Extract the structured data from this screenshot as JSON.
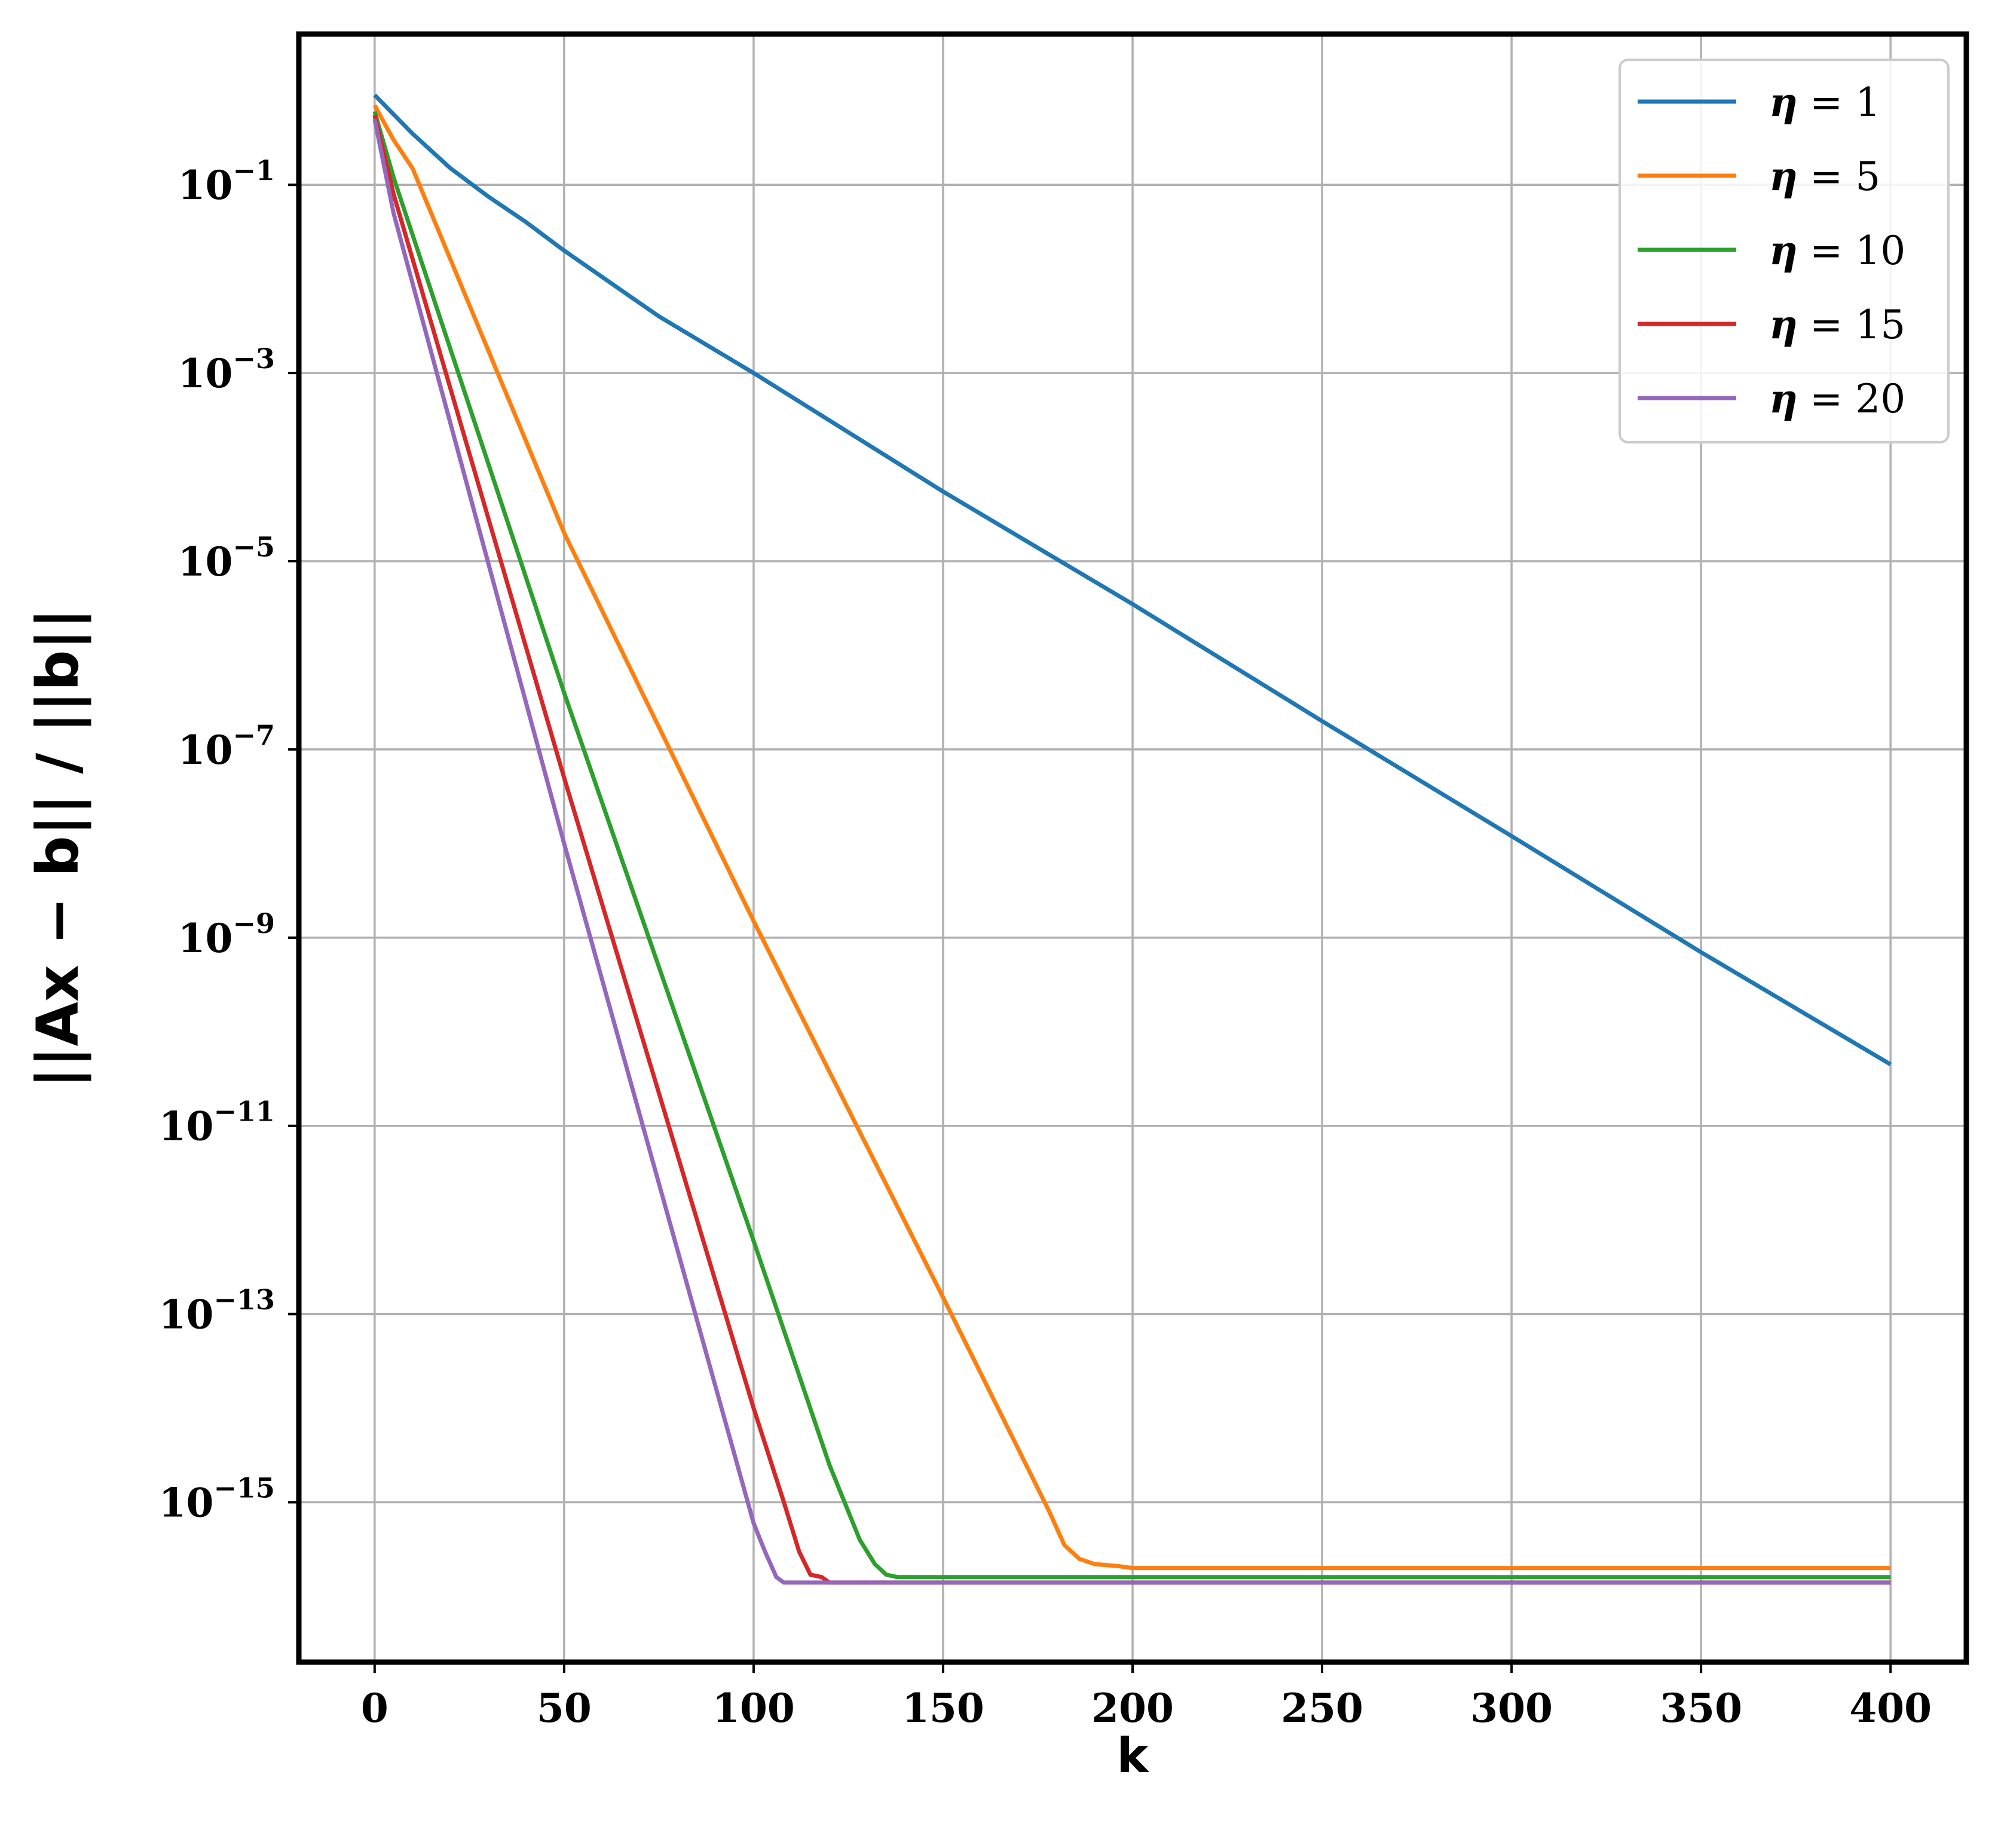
{
  "chart_data": {
    "type": "line",
    "title": "",
    "xlabel": "k",
    "ylabel": "||Ax − b|| / ||b||",
    "xscale": "linear",
    "yscale": "log",
    "xlim": [
      -20,
      420
    ],
    "ylim": [
      2e-17,
      4
    ],
    "xticks": [
      0,
      50,
      100,
      150,
      200,
      250,
      300,
      350,
      400
    ],
    "yticks": [
      {
        "value": 0.1,
        "base": "10",
        "exp": "−1"
      },
      {
        "value": 0.001,
        "base": "10",
        "exp": "−3"
      },
      {
        "value": 1e-05,
        "base": "10",
        "exp": "−5"
      },
      {
        "value": 1e-07,
        "base": "10",
        "exp": "−7"
      },
      {
        "value": 1e-09,
        "base": "10",
        "exp": "−9"
      },
      {
        "value": 1e-11,
        "base": "10",
        "exp": "−11"
      },
      {
        "value": 1e-13,
        "base": "10",
        "exp": "−13"
      },
      {
        "value": 1e-15,
        "base": "10",
        "exp": "−15"
      }
    ],
    "grid": true,
    "legend_position": "top-right",
    "series": [
      {
        "name": "η = 1",
        "sym": "η",
        "eq": "= 1",
        "color": "#1f77b4",
        "x": [
          0,
          10,
          20,
          30,
          40,
          50,
          75,
          100,
          150,
          200,
          250,
          300,
          350,
          400
        ],
        "y": [
          0.9,
          0.35,
          0.15,
          0.075,
          0.04,
          0.02,
          0.004,
          0.001,
          5.5e-05,
          3.5e-06,
          2e-07,
          1.2e-08,
          7e-10,
          4.5e-11
        ]
      },
      {
        "name": "η = 5",
        "sym": "η",
        "eq": "= 5",
        "color": "#ff7f0e",
        "x": [
          0,
          5,
          10,
          50,
          100,
          150,
          178,
          182,
          186,
          190,
          196,
          200,
          400
        ],
        "y": [
          0.7,
          0.3,
          0.15,
          2e-05,
          1.5e-09,
          1.5e-13,
          8e-16,
          3.5e-16,
          2.5e-16,
          2.2e-16,
          2.1e-16,
          2e-16,
          2e-16
        ]
      },
      {
        "name": "η = 10",
        "sym": "η",
        "eq": "= 10",
        "color": "#2ca02c",
        "x": [
          0,
          5,
          50,
          100,
          120,
          128,
          132,
          135,
          138,
          140,
          400
        ],
        "y": [
          0.6,
          0.12,
          4e-07,
          6e-13,
          2.5e-15,
          4e-16,
          2.2e-16,
          1.7e-16,
          1.6e-16,
          1.6e-16,
          1.6e-16
        ]
      },
      {
        "name": "η = 15",
        "sym": "η",
        "eq": "= 15",
        "color": "#d62728",
        "x": [
          0,
          5,
          50,
          100,
          108,
          112,
          115,
          118,
          120,
          400
        ],
        "y": [
          0.55,
          0.08,
          5e-08,
          1e-14,
          1e-15,
          3e-16,
          1.7e-16,
          1.6e-16,
          1.4e-16,
          1.4e-16
        ]
      },
      {
        "name": "η = 20",
        "sym": "η",
        "eq": "= 20",
        "color": "#9467bd",
        "x": [
          0,
          5,
          50,
          100,
          103,
          106,
          108,
          110,
          400
        ],
        "y": [
          0.5,
          0.05,
          1e-08,
          6e-16,
          3e-16,
          1.6e-16,
          1.4e-16,
          1.4e-16,
          1.4e-16
        ]
      }
    ]
  }
}
